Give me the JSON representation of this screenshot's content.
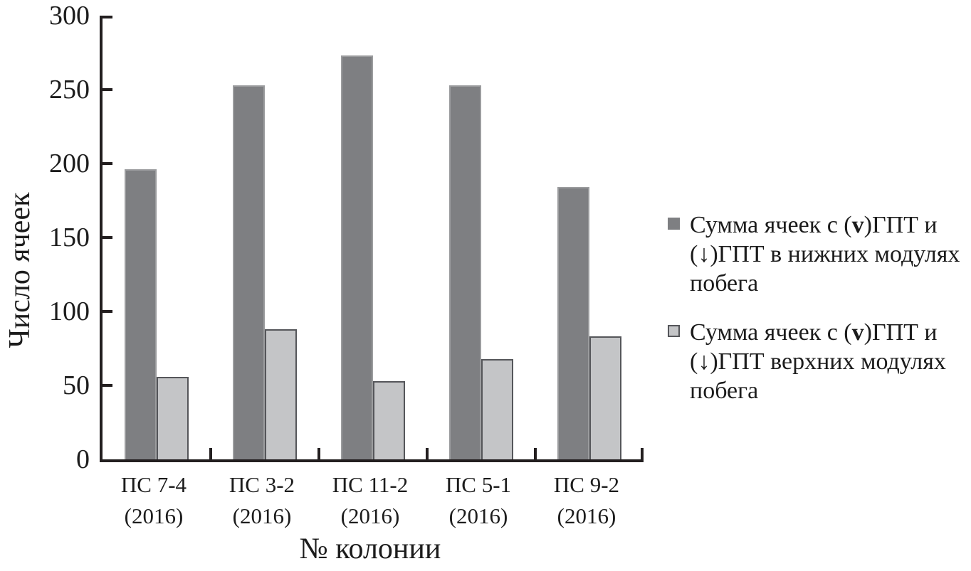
{
  "chart_data": {
    "type": "bar",
    "title": "",
    "xlabel": "№ колонии",
    "ylabel": "Число ячеек",
    "ylim": [
      0,
      300
    ],
    "yticks": [
      0,
      50,
      100,
      150,
      200,
      250,
      300
    ],
    "grid": false,
    "legend_position": "right",
    "categories": [
      "ПС 7-4 (2016)",
      "ПС 3-2 (2016)",
      "ПС 11-2 (2016)",
      "ПС 5-1 (2016)",
      "ПС 9-2 (2016)"
    ],
    "category_lines": [
      [
        "ПС 7-4",
        "(2016)"
      ],
      [
        "ПС 3-2",
        "(2016)"
      ],
      [
        "ПС 11-2",
        "(2016)"
      ],
      [
        "ПС 5-1",
        "(2016)"
      ],
      [
        "ПС 9-2",
        "(2016)"
      ]
    ],
    "series": [
      {
        "name": "Сумма ячеек с (v)ГПТ и (↓)ГПТ в нижних модулях побега",
        "color": "#7e7f82",
        "values": [
          196,
          253,
          273,
          253,
          184
        ]
      },
      {
        "name": "Сумма ячеек с (v)ГПТ и (↓)ГПТ верхних модулях побега",
        "color": "#c4c5c7",
        "values": [
          56,
          88,
          53,
          68,
          83
        ]
      }
    ]
  },
  "legend": {
    "items": [
      {
        "swatch_color": "#7e7f82",
        "text_pre": "Сумма ячеек с (",
        "bold": "v",
        "text_post": ")ГПТ и\n(↓)ГПТ в нижних модулях\nпобега"
      },
      {
        "swatch_color": "#c4c5c7",
        "text_pre": "Сумма ячеек с (",
        "bold": "v",
        "text_post": ")ГПТ и\n(↓)ГПТ верхних модулях\nпобега"
      }
    ]
  },
  "colors": {
    "axis": "#231f20",
    "dark_bar": "#7e7f82",
    "light_bar": "#c4c5c7",
    "light_bar_border": "#55565a"
  }
}
